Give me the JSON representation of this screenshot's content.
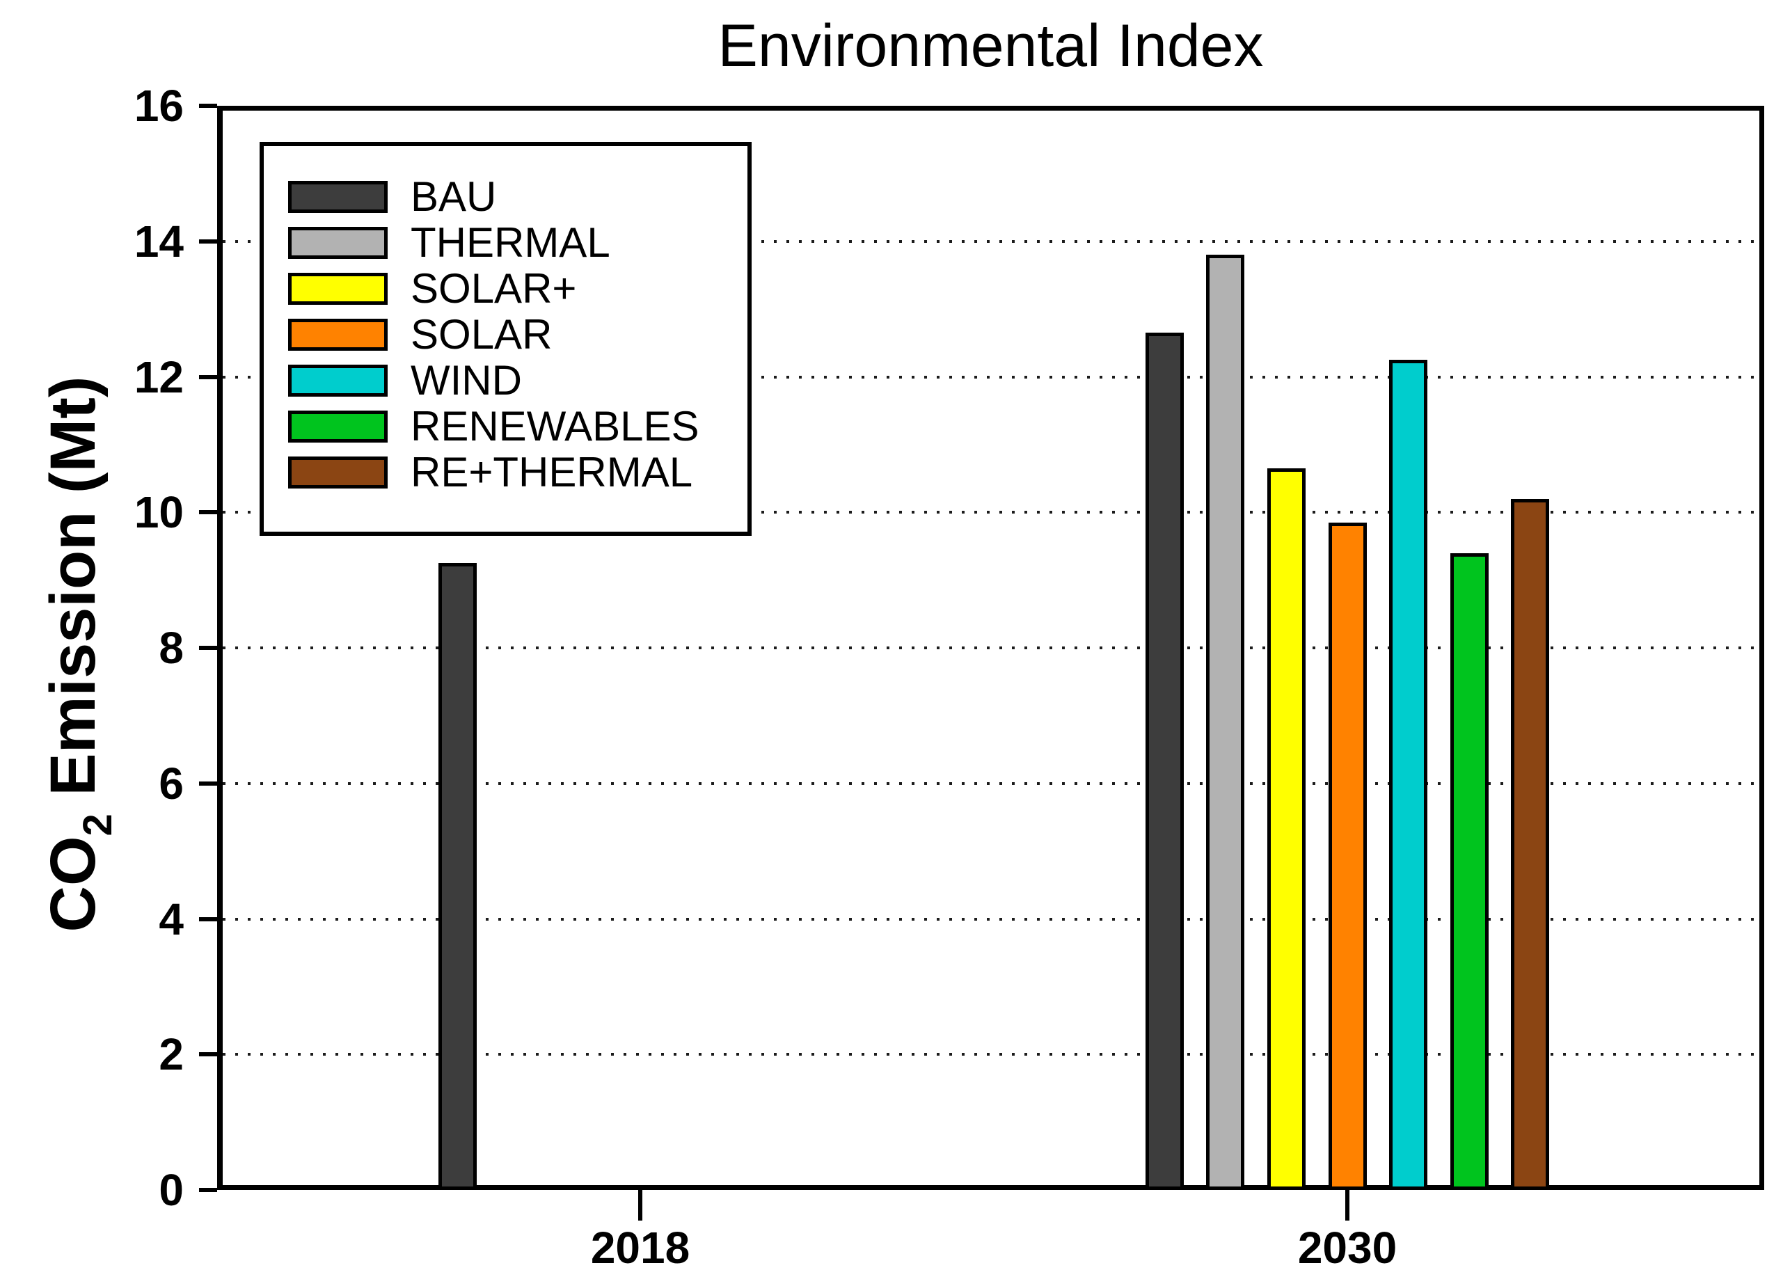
{
  "title": "Environmental Index",
  "axes": {
    "y_label_prefix": "CO",
    "y_label_sub": "2",
    "y_label_suffix": " Emission (Mt)",
    "y_ticks": [
      "0",
      "2",
      "4",
      "6",
      "8",
      "10",
      "12",
      "14",
      "16"
    ],
    "x_ticks": [
      "2018",
      "2030"
    ]
  },
  "chart_data": {
    "type": "bar",
    "title": "Environmental Index",
    "xlabel": "",
    "ylabel": "CO2 Emission (Mt)",
    "ylim": [
      0,
      16
    ],
    "ytick_step": 2,
    "grid": "horizontal dotted lines at every 2 units",
    "legend_position": "upper-left inside plot",
    "categories": [
      "2018",
      "2030"
    ],
    "series": [
      {
        "name": "BAU",
        "color": "#3d3d3d",
        "values": [
          9.25,
          12.65
        ]
      },
      {
        "name": "THERMAL",
        "color": "#b2b2b2",
        "values": [
          null,
          13.8
        ]
      },
      {
        "name": "SOLAR+",
        "color": "#ffff00",
        "values": [
          null,
          10.65
        ]
      },
      {
        "name": "SOLAR",
        "color": "#ff8200",
        "values": [
          null,
          9.85
        ]
      },
      {
        "name": "WIND",
        "color": "#00cdcd",
        "values": [
          null,
          12.25
        ]
      },
      {
        "name": "RENEWABLES",
        "color": "#00c41e",
        "values": [
          null,
          9.4
        ]
      },
      {
        "name": "RE+THERMAL",
        "color": "#8b4513",
        "values": [
          null,
          10.2
        ]
      }
    ]
  }
}
